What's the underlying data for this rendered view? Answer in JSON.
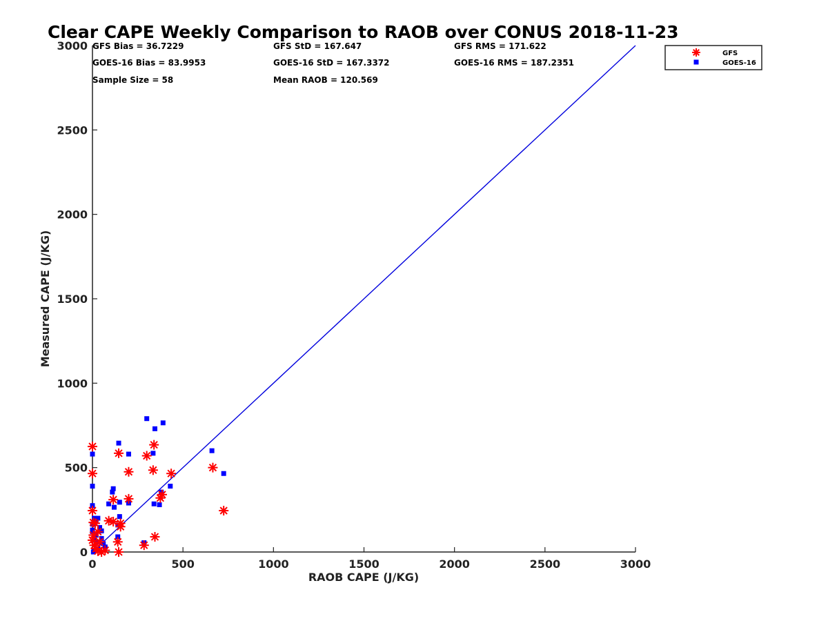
{
  "chart_data": {
    "type": "scatter",
    "title": "Clear CAPE Weekly Comparison to RAOB over CONUS 2018-11-23",
    "xlabel": "RAOB CAPE (J/KG)",
    "ylabel": "Measured CAPE (J/KG)",
    "xlim": [
      0,
      3000
    ],
    "ylim": [
      0,
      3000
    ],
    "xticks": [
      0,
      500,
      1000,
      1500,
      2000,
      2500,
      3000
    ],
    "yticks": [
      0,
      500,
      1000,
      1500,
      2000,
      2500,
      3000
    ],
    "xtick_labels": [
      "0",
      "500",
      "1000",
      "1500",
      "2000",
      "2500",
      "3000"
    ],
    "ytick_labels": [
      "0",
      "500",
      "1000",
      "1500",
      "2000",
      "2500",
      "3000"
    ],
    "grid": false,
    "legend_position": "top-right",
    "reference_line": {
      "x": [
        0,
        3000
      ],
      "y": [
        0,
        3000
      ],
      "color": "#0000dd"
    },
    "stats": [
      "GFS Bias = 36.7229",
      "GFS StD = 167.647",
      "GFS RMS = 171.622",
      "GOES-16 Bias = 83.9953",
      "GOES-16 StD = 167.3372",
      "GOES-16 RMS = 187.2351",
      "Sample Size = 58",
      "Mean RAOB = 120.569"
    ],
    "series": [
      {
        "name": "GFS",
        "marker": "asterisk",
        "color": "#ff0000",
        "points": [
          [
            0,
            625
          ],
          [
            0,
            465
          ],
          [
            0,
            245
          ],
          [
            5,
            175
          ],
          [
            15,
            170
          ],
          [
            0,
            70
          ],
          [
            10,
            40
          ],
          [
            20,
            20
          ],
          [
            30,
            5
          ],
          [
            50,
            0
          ],
          [
            70,
            10
          ],
          [
            40,
            60
          ],
          [
            30,
            120
          ],
          [
            5,
            100
          ],
          [
            90,
            185
          ],
          [
            115,
            180
          ],
          [
            115,
            310
          ],
          [
            145,
            585
          ],
          [
            155,
            170
          ],
          [
            155,
            150
          ],
          [
            140,
            60
          ],
          [
            145,
            0
          ],
          [
            200,
            475
          ],
          [
            200,
            315
          ],
          [
            300,
            570
          ],
          [
            335,
            485
          ],
          [
            340,
            635
          ],
          [
            345,
            90
          ],
          [
            285,
            40
          ],
          [
            375,
            320
          ],
          [
            385,
            340
          ],
          [
            435,
            465
          ],
          [
            665,
            500
          ],
          [
            725,
            245
          ]
        ]
      },
      {
        "name": "GOES-16",
        "marker": "square",
        "color": "#0000ff",
        "points": [
          [
            0,
            580
          ],
          [
            0,
            390
          ],
          [
            0,
            275
          ],
          [
            0,
            165
          ],
          [
            0,
            130
          ],
          [
            0,
            120
          ],
          [
            10,
            200
          ],
          [
            20,
            180
          ],
          [
            30,
            200
          ],
          [
            40,
            145
          ],
          [
            20,
            100
          ],
          [
            10,
            70
          ],
          [
            30,
            60
          ],
          [
            50,
            80
          ],
          [
            60,
            50
          ],
          [
            70,
            30
          ],
          [
            50,
            125
          ],
          [
            30,
            20
          ],
          [
            10,
            10
          ],
          [
            5,
            0
          ],
          [
            90,
            285
          ],
          [
            110,
            355
          ],
          [
            115,
            375
          ],
          [
            120,
            265
          ],
          [
            140,
            160
          ],
          [
            150,
            210
          ],
          [
            150,
            295
          ],
          [
            145,
            645
          ],
          [
            140,
            90
          ],
          [
            200,
            580
          ],
          [
            200,
            290
          ],
          [
            285,
            55
          ],
          [
            300,
            790
          ],
          [
            335,
            585
          ],
          [
            345,
            730
          ],
          [
            340,
            285
          ],
          [
            370,
            280
          ],
          [
            380,
            355
          ],
          [
            390,
            765
          ],
          [
            430,
            390
          ],
          [
            660,
            600
          ],
          [
            725,
            465
          ]
        ]
      }
    ]
  }
}
